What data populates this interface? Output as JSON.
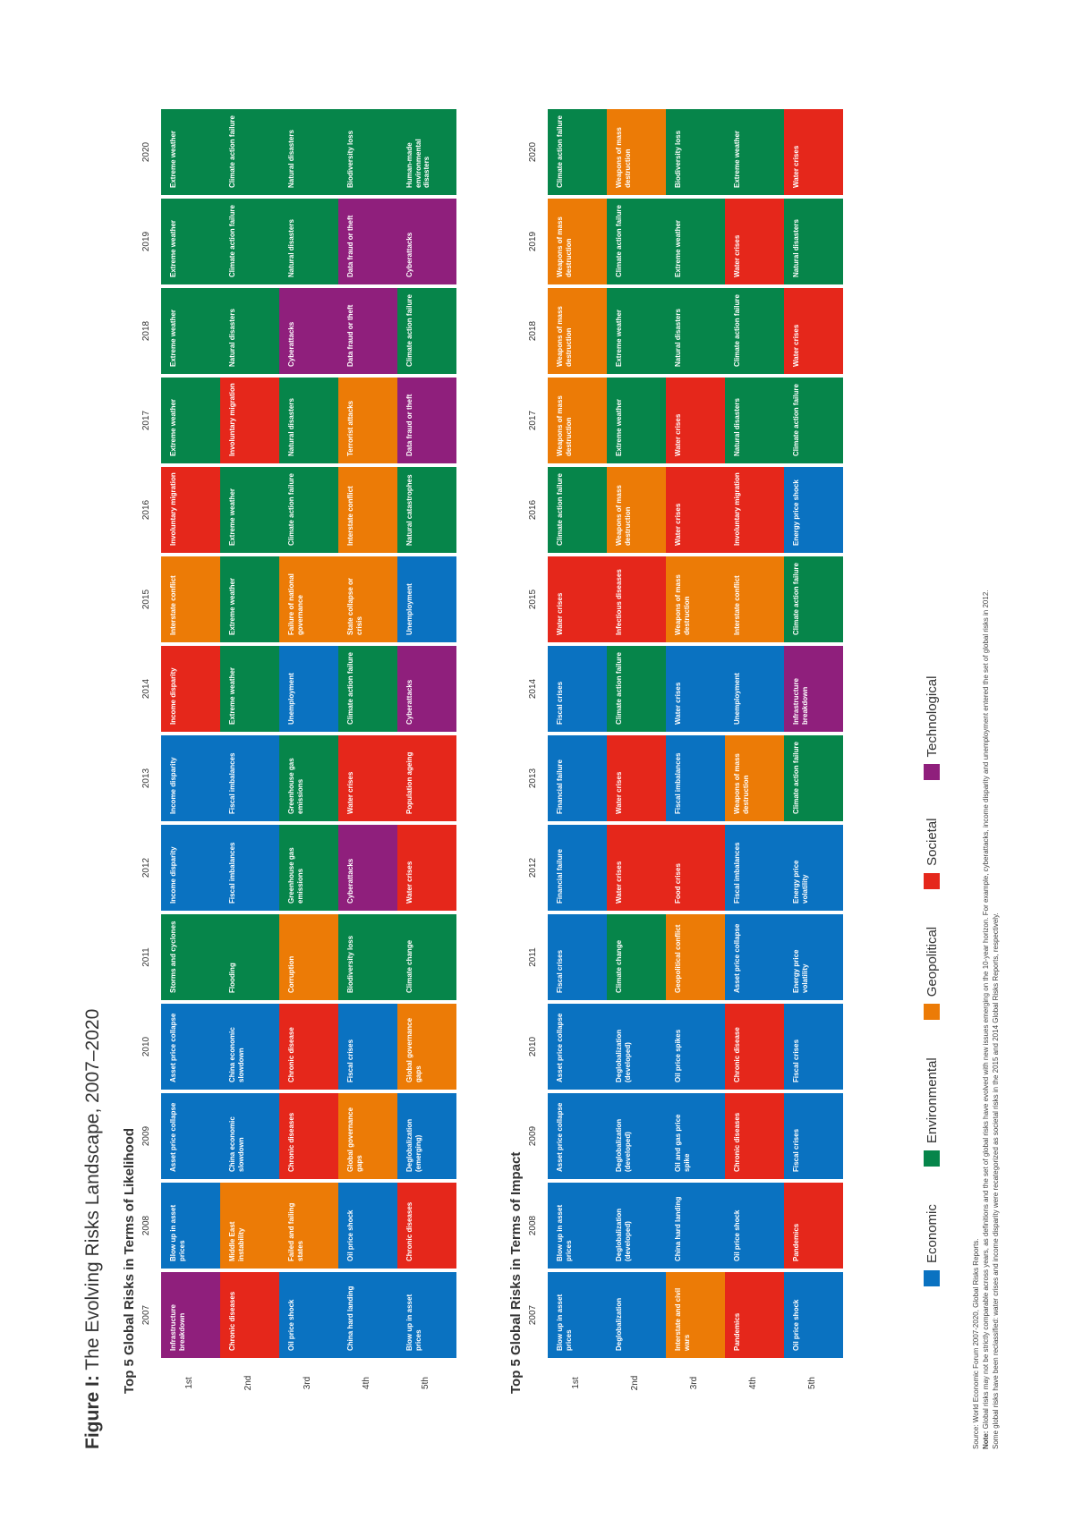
{
  "figure": {
    "label": "Figure I:",
    "title": "The Evolving Risks Landscape, 2007–2020"
  },
  "years": [
    "2007",
    "2008",
    "2009",
    "2010",
    "2011",
    "2012",
    "2013",
    "2014",
    "2015",
    "2016",
    "2017",
    "2018",
    "2019",
    "2020"
  ],
  "ranks": [
    "1st",
    "2nd",
    "3rd",
    "4th",
    "5th"
  ],
  "colors": {
    "economic": "#0a72c1",
    "environmental": "#06854a",
    "geopolitical": "#ec7b06",
    "societal": "#e5271b",
    "technological": "#8f1f7c"
  },
  "likelihood": {
    "title": "Top 5 Global Risks in Terms of Likelihood",
    "rows": [
      [
        [
          "Infrastructure breakdown",
          "technological"
        ],
        [
          "Blow up in asset prices",
          "economic"
        ],
        [
          "Asset price collapse",
          "economic"
        ],
        [
          "Asset price collapse",
          "economic"
        ],
        [
          "Storms and cyclones",
          "environmental"
        ],
        [
          "Income disparity",
          "economic"
        ],
        [
          "Income disparity",
          "economic"
        ],
        [
          "Income disparity",
          "societal"
        ],
        [
          "Interstate conflict",
          "geopolitical"
        ],
        [
          "Involuntary migration",
          "societal"
        ],
        [
          "Extreme weather",
          "environmental"
        ],
        [
          "Extreme weather",
          "environmental"
        ],
        [
          "Extreme weather",
          "environmental"
        ],
        [
          "Extreme weather",
          "environmental"
        ]
      ],
      [
        [
          "Chronic diseases",
          "societal"
        ],
        [
          "Middle East instability",
          "geopolitical"
        ],
        [
          "China economic slowdown",
          "economic"
        ],
        [
          "China economic slowdown",
          "economic"
        ],
        [
          "Flooding",
          "environmental"
        ],
        [
          "Fiscal imbalances",
          "economic"
        ],
        [
          "Fiscal imbalances",
          "economic"
        ],
        [
          "Extreme weather",
          "environmental"
        ],
        [
          "Extreme weather",
          "environmental"
        ],
        [
          "Extreme weather",
          "environmental"
        ],
        [
          "Involuntary migration",
          "societal"
        ],
        [
          "Natural disasters",
          "environmental"
        ],
        [
          "Climate action failure",
          "environmental"
        ],
        [
          "Climate action failure",
          "environmental"
        ]
      ],
      [
        [
          "Oil price shock",
          "economic"
        ],
        [
          "Failed and failing states",
          "geopolitical"
        ],
        [
          "Chronic diseases",
          "societal"
        ],
        [
          "Chronic disease",
          "societal"
        ],
        [
          "Corruption",
          "geopolitical"
        ],
        [
          "Greenhouse gas emissions",
          "environmental"
        ],
        [
          "Greenhouse gas emissions",
          "environmental"
        ],
        [
          "Unemployment",
          "economic"
        ],
        [
          "Failure of national governance",
          "geopolitical"
        ],
        [
          "Climate action failure",
          "environmental"
        ],
        [
          "Natural disasters",
          "environmental"
        ],
        [
          "Cyberattacks",
          "technological"
        ],
        [
          "Natural disasters",
          "environmental"
        ],
        [
          "Natural disasters",
          "environmental"
        ]
      ],
      [
        [
          "China hard landing",
          "economic"
        ],
        [
          "Oil price shock",
          "economic"
        ],
        [
          "Global governance gaps",
          "geopolitical"
        ],
        [
          "Fiscal crises",
          "economic"
        ],
        [
          "Biodiversity loss",
          "environmental"
        ],
        [
          "Cyberattacks",
          "technological"
        ],
        [
          "Water crises",
          "societal"
        ],
        [
          "Climate action failure",
          "environmental"
        ],
        [
          "State collapse or crisis",
          "geopolitical"
        ],
        [
          "Interstate conflict",
          "geopolitical"
        ],
        [
          "Terrorist attacks",
          "geopolitical"
        ],
        [
          "Data fraud or theft",
          "technological"
        ],
        [
          "Data fraud or theft",
          "technological"
        ],
        [
          "Biodiversity loss",
          "environmental"
        ]
      ],
      [
        [
          "Blow up in asset prices",
          "economic"
        ],
        [
          "Chronic diseases",
          "societal"
        ],
        [
          "Deglobalization (emerging)",
          "economic"
        ],
        [
          "Global governance gaps",
          "geopolitical"
        ],
        [
          "Climate change",
          "environmental"
        ],
        [
          "Water crises",
          "societal"
        ],
        [
          "Population ageing",
          "societal"
        ],
        [
          "Cyberattacks",
          "technological"
        ],
        [
          "Unemployment",
          "economic"
        ],
        [
          "Natural catastrophes",
          "environmental"
        ],
        [
          "Data fraud or theft",
          "technological"
        ],
        [
          "Climate action failure",
          "environmental"
        ],
        [
          "Cyberattacks",
          "technological"
        ],
        [
          "Human-made environmental disasters",
          "environmental"
        ]
      ]
    ]
  },
  "impact": {
    "title": "Top 5 Global Risks in Terms of Impact",
    "rows": [
      [
        [
          "Blow up in asset prices",
          "economic"
        ],
        [
          "Blow up in asset prices",
          "economic"
        ],
        [
          "Asset price collapse",
          "economic"
        ],
        [
          "Asset price collapse",
          "economic"
        ],
        [
          "Fiscal crises",
          "economic"
        ],
        [
          "Financial failure",
          "economic"
        ],
        [
          "Financial failure",
          "economic"
        ],
        [
          "Fiscal crises",
          "economic"
        ],
        [
          "Water crises",
          "societal"
        ],
        [
          "Climate action failure",
          "environmental"
        ],
        [
          "Weapons of mass destruction",
          "geopolitical"
        ],
        [
          "Weapons of mass destruction",
          "geopolitical"
        ],
        [
          "Weapons of mass destruction",
          "geopolitical"
        ],
        [
          "Climate action failure",
          "environmental"
        ]
      ],
      [
        [
          "Deglobalization",
          "economic"
        ],
        [
          "Deglobalization (developed)",
          "economic"
        ],
        [
          "Deglobalization (developed)",
          "economic"
        ],
        [
          "Deglobalization (developed)",
          "economic"
        ],
        [
          "Climate change",
          "environmental"
        ],
        [
          "Water crises",
          "societal"
        ],
        [
          "Water crises",
          "societal"
        ],
        [
          "Climate action failure",
          "environmental"
        ],
        [
          "Infectious diseases",
          "societal"
        ],
        [
          "Weapons of mass destruction",
          "geopolitical"
        ],
        [
          "Extreme weather",
          "environmental"
        ],
        [
          "Extreme weather",
          "environmental"
        ],
        [
          "Climate action failure",
          "environmental"
        ],
        [
          "Weapons of mass destruction",
          "geopolitical"
        ]
      ],
      [
        [
          "Interstate and civil wars",
          "geopolitical"
        ],
        [
          "China hard landing",
          "economic"
        ],
        [
          "Oil and gas price spike",
          "economic"
        ],
        [
          "Oil price spikes",
          "economic"
        ],
        [
          "Geopolitical conflict",
          "geopolitical"
        ],
        [
          "Food crises",
          "societal"
        ],
        [
          "Fiscal imbalances",
          "economic"
        ],
        [
          "Water crises",
          "economic"
        ],
        [
          "Weapons of mass destruction",
          "geopolitical"
        ],
        [
          "Water crises",
          "societal"
        ],
        [
          "Water crises",
          "societal"
        ],
        [
          "Natural disasters",
          "environmental"
        ],
        [
          "Extreme weather",
          "environmental"
        ],
        [
          "Biodiversity loss",
          "environmental"
        ]
      ],
      [
        [
          "Pandemics",
          "societal"
        ],
        [
          "Oil price shock",
          "economic"
        ],
        [
          "Chronic diseases",
          "societal"
        ],
        [
          "Chronic disease",
          "societal"
        ],
        [
          "Asset price collapse",
          "economic"
        ],
        [
          "Fiscal imbalances",
          "economic"
        ],
        [
          "Weapons of mass destruction",
          "geopolitical"
        ],
        [
          "Unemployment",
          "economic"
        ],
        [
          "Interstate conflict",
          "geopolitical"
        ],
        [
          "Involuntary migration",
          "societal"
        ],
        [
          "Natural disasters",
          "environmental"
        ],
        [
          "Climate action failure",
          "environmental"
        ],
        [
          "Water crises",
          "societal"
        ],
        [
          "Extreme weather",
          "environmental"
        ]
      ],
      [
        [
          "Oil price shock",
          "economic"
        ],
        [
          "Pandemics",
          "societal"
        ],
        [
          "Fiscal crises",
          "economic"
        ],
        [
          "Fiscal crises",
          "economic"
        ],
        [
          "Energy price volatility",
          "economic"
        ],
        [
          "Energy price volatility",
          "economic"
        ],
        [
          "Climate action failure",
          "environmental"
        ],
        [
          "Infrastructure breakdown",
          "technological"
        ],
        [
          "Climate action failure",
          "environmental"
        ],
        [
          "Energy price shock",
          "economic"
        ],
        [
          "Climate action failure",
          "environmental"
        ],
        [
          "Water crises",
          "societal"
        ],
        [
          "Natural disasters",
          "environmental"
        ],
        [
          "Water crises",
          "societal"
        ]
      ]
    ]
  },
  "legend": [
    {
      "label": "Economic",
      "category": "economic"
    },
    {
      "label": "Environmental",
      "category": "environmental"
    },
    {
      "label": "Geopolitical",
      "category": "geopolitical"
    },
    {
      "label": "Societal",
      "category": "societal"
    },
    {
      "label": "Technological",
      "category": "technological"
    }
  ],
  "footer": {
    "source_label": "Source:",
    "source_text": "World Economic Forum 2007-2020, Global Risks Reports.",
    "note_label": "Note:",
    "note_text": "Global risks may not be strictly comparable across years, as definitions and the set of global risks have evolved with new issues emerging on the 10-year horizon. For example, cyberattacks, income disparity and unemployment entered the set of global risks in 2012.",
    "note_text2": "Some global risks have been reclassified: water crises and income disparity were recategorized as societal risks in the 2015 and 2014 Global Risks Reports, respectively."
  }
}
